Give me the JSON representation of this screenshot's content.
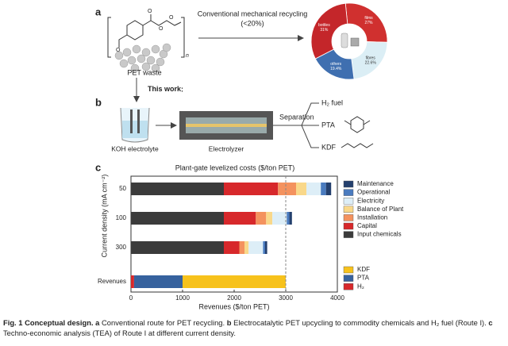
{
  "panel_a": {
    "label": "a",
    "source": "PET waste",
    "repeat": "n",
    "atoms": [
      "O",
      "O",
      "O",
      "O"
    ],
    "arrow_label": "Conventional mechanical recycling",
    "arrow_sublabel": "(<20%)",
    "work": "This work"
  },
  "panel_b": {
    "label": "b",
    "electrolyte": "KOH electrolyte",
    "electrolyzer": "Electrolyzer",
    "separation": "Separation",
    "products": [
      "H₂ fuel",
      "PTA",
      "KDF"
    ]
  },
  "panel_c": {
    "label": "c"
  },
  "chart_data": [
    {
      "type": "pie",
      "categories": [
        "films",
        "fibres",
        "others",
        "bottles"
      ],
      "values": [
        27,
        22.6,
        19.4,
        31
      ],
      "value_labels": [
        "27%",
        "22.6%",
        "19.4%",
        "31%"
      ],
      "colors": [
        "#d0302f",
        "#dbeef5",
        "#3f6fb0",
        "#c4262a"
      ],
      "text_colors": [
        "#fff",
        "#333",
        "#fff",
        "#fff"
      ]
    },
    {
      "type": "bar",
      "orientation": "horizontal",
      "title": "Plant-gate levelized costs ($/ton PET)",
      "xlabel": "Revenues ($/ton PET)",
      "ylabel": "Current density (mA cm⁻²)",
      "categories": [
        "50",
        "100",
        "300",
        "Revenues"
      ],
      "xlim": [
        0,
        4000
      ],
      "xticks": [
        0,
        1000,
        2000,
        3000,
        4000
      ],
      "reference_line": 3000,
      "series": [
        {
          "name": "Input chemicals",
          "color": "#3b3b3b",
          "values": [
            1800,
            1800,
            1800,
            null
          ]
        },
        {
          "name": "Capital",
          "color": "#d7282b",
          "values": [
            1050,
            620,
            300,
            null
          ]
        },
        {
          "name": "Installation",
          "color": "#f4925e",
          "values": [
            350,
            200,
            100,
            null
          ]
        },
        {
          "name": "Balance of Plant",
          "color": "#f9d88a",
          "values": [
            200,
            120,
            80,
            null
          ]
        },
        {
          "name": "Electricity",
          "color": "#ddeef7",
          "values": [
            280,
            280,
            280,
            null
          ]
        },
        {
          "name": "Operational",
          "color": "#4a7bbf",
          "values": [
            100,
            50,
            40,
            null
          ]
        },
        {
          "name": "Maintenance",
          "color": "#24406e",
          "values": [
            100,
            50,
            40,
            null
          ]
        },
        {
          "name": "H₂",
          "color": "#d7282b",
          "values": [
            null,
            null,
            null,
            60
          ]
        },
        {
          "name": "PTA",
          "color": "#36629e",
          "values": [
            null,
            null,
            null,
            940
          ]
        },
        {
          "name": "KDF",
          "color": "#f7c21c",
          "values": [
            null,
            null,
            null,
            2000
          ]
        }
      ]
    }
  ],
  "caption": {
    "title": "Fig. 1 Conceptual design.",
    "parts": [
      {
        "label": "a",
        "text": "Conventional route for PET recycling."
      },
      {
        "label": "b",
        "text": "Electrocatalytic PET upcycling to commodity chemicals and H₂ fuel (Route I)."
      },
      {
        "label": "c",
        "text": "Techno-economic analysis (TEA) of Route I at different current density."
      }
    ]
  }
}
